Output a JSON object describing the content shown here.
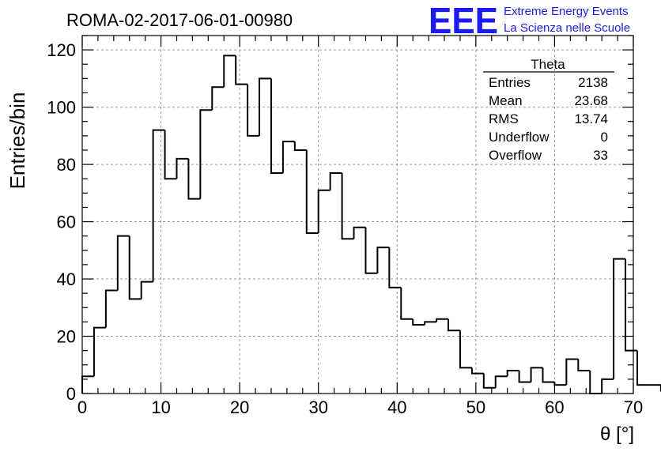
{
  "header": {
    "run_title": "ROMA-02-2017-06-01-00980",
    "logo_letters": "EEE",
    "logo_line1": "Extreme Energy Events",
    "logo_line2": "La Scienza nelle Scuole",
    "logo_color": "#1a1aff"
  },
  "stats": {
    "title": "Theta",
    "rows": [
      {
        "label": "Entries",
        "value": "2138"
      },
      {
        "label": "Mean",
        "value": "23.68"
      },
      {
        "label": "RMS",
        "value": "13.74"
      },
      {
        "label": "Underflow",
        "value": "0"
      },
      {
        "label": "Overflow",
        "value": "33"
      }
    ]
  },
  "chart_data": {
    "type": "bar",
    "subtype": "histogram",
    "title": "ROMA-02-2017-06-01-00980",
    "xlabel": "θ [°]",
    "ylabel": "Entries/bin",
    "xlim": [
      0,
      70
    ],
    "ylim": [
      0,
      125
    ],
    "x_ticks": [
      0,
      10,
      20,
      30,
      40,
      50,
      60,
      70
    ],
    "y_ticks": [
      0,
      20,
      40,
      60,
      80,
      100,
      120
    ],
    "grid": true,
    "bin_width": 1.5,
    "bin_edges_start": 0,
    "values": [
      6,
      23,
      36,
      55,
      33,
      39,
      92,
      75,
      82,
      68,
      99,
      107,
      118,
      108,
      90,
      110,
      77,
      88,
      85,
      56,
      71,
      77,
      54,
      58,
      42,
      51,
      37,
      26,
      24,
      25,
      26,
      22,
      9,
      7,
      2,
      6,
      8,
      4,
      9,
      4,
      3,
      12,
      8,
      0,
      5,
      47,
      15,
      3,
      3,
      1
    ],
    "line_color": "#000000"
  }
}
